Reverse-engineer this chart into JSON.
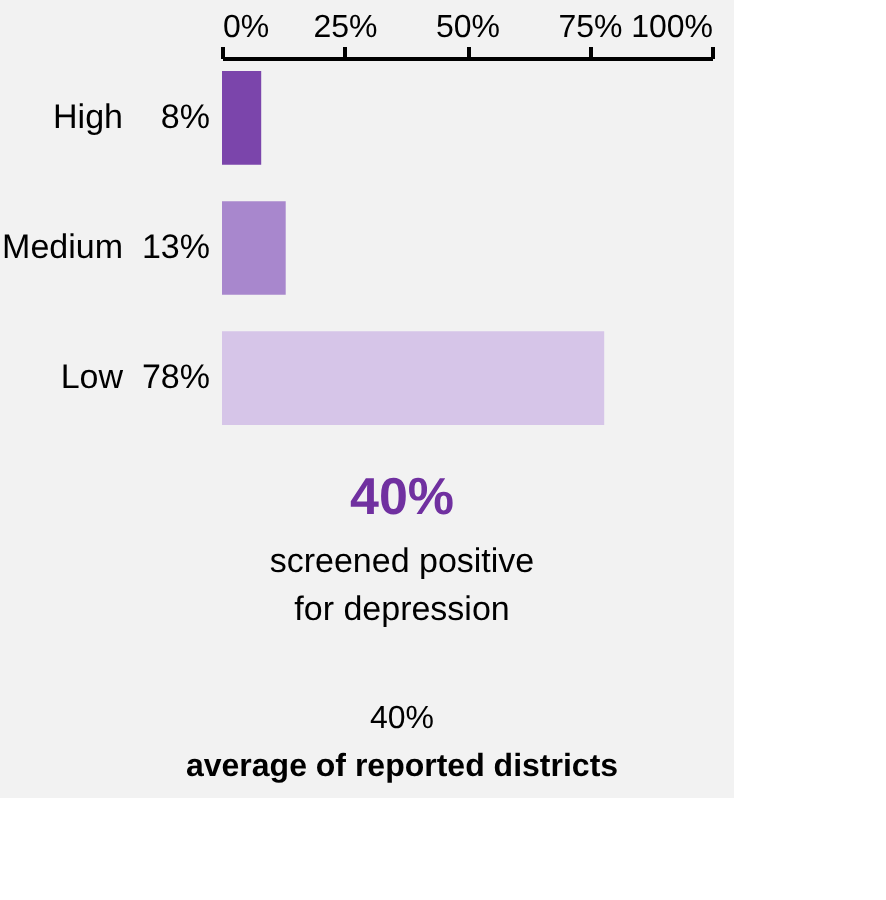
{
  "chart_data": {
    "type": "bar",
    "orientation": "horizontal",
    "categories": [
      "High",
      "Medium",
      "Low"
    ],
    "values": [
      8,
      13,
      78
    ],
    "colors": [
      "#7b45ab",
      "#a887cd",
      "#d6c5e8"
    ],
    "value_labels": [
      "8%",
      "13%",
      "78%"
    ],
    "xlim": [
      0,
      100
    ],
    "xticks": [
      {
        "value": 0,
        "label": "0%"
      },
      {
        "value": 25,
        "label": "25%"
      },
      {
        "value": 50,
        "label": "50%"
      },
      {
        "value": 75,
        "label": "75%"
      },
      {
        "value": 100,
        "label": "100%"
      }
    ],
    "grid": false,
    "legend": false,
    "annotations": [
      "40%",
      "screened positive",
      "for depression",
      "40%",
      "average of reported districts"
    ]
  }
}
